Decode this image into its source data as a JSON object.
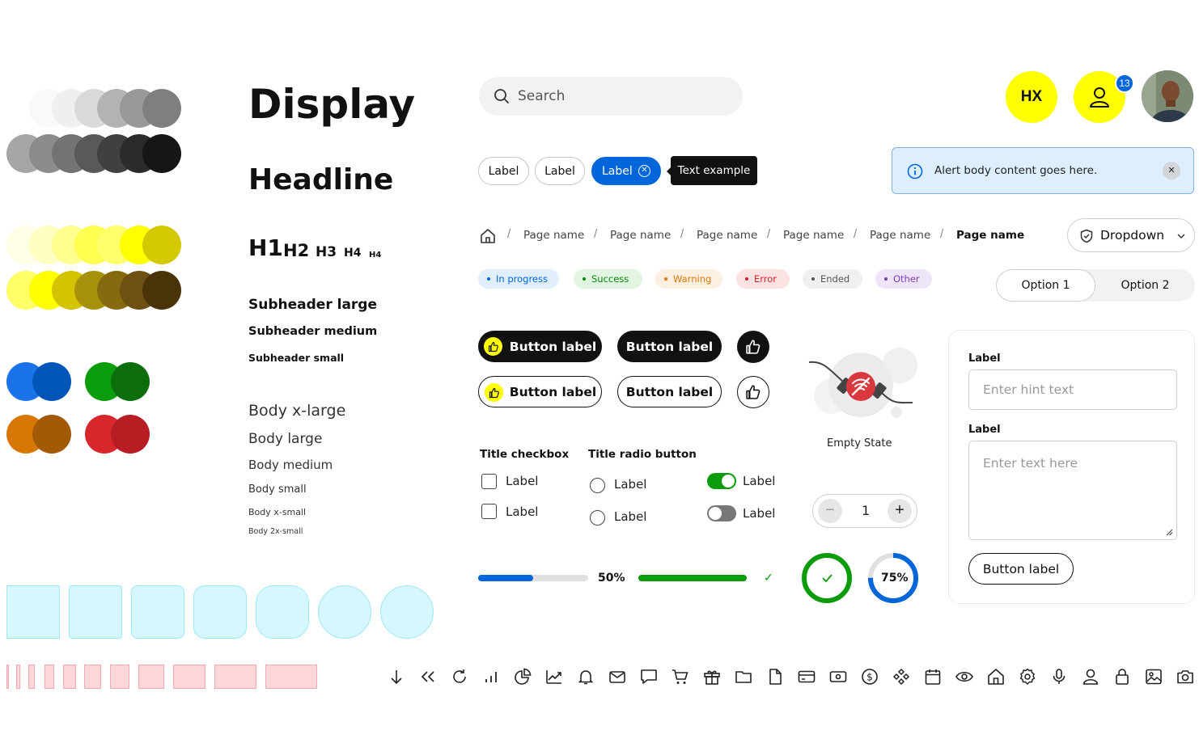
{
  "colors": {
    "accent_blue": "#0066d9",
    "accent_yellow": "#ffff00",
    "success_green": "#009900",
    "tile_fill": "#d6f7fd",
    "bar_fill": "#ffd6d9"
  },
  "typography": {
    "display": "Display",
    "headline": "Headline",
    "h1": "H1",
    "h2": "H2",
    "h3": "H3",
    "h4": "H4",
    "h5": "H4",
    "subheader_large": "Subheader large",
    "subheader_medium": "Subheader medium",
    "subheader_small": "Subheader small",
    "body_xlarge": "Body x-large",
    "body_large": "Body large",
    "body_medium": "Body medium",
    "body_small": "Body small",
    "body_xsmall": "Body x-small",
    "body_2xsmall": "Body 2x-small"
  },
  "search": {
    "placeholder": "Search",
    "icon": "search-icon"
  },
  "avatars": {
    "initials": "HX",
    "notification_count": "13",
    "user_icon": "user-icon"
  },
  "chips": {
    "chip1": "Label",
    "chip2": "Label",
    "chip_selected": "Label",
    "tooltip": "Text example"
  },
  "alert": {
    "body": "Alert body content goes here.",
    "icon": "info-icon"
  },
  "breadcrumb": {
    "home_icon": "home-icon",
    "items": [
      "Page name",
      "Page name",
      "Page name",
      "Page name",
      "Page name",
      "Page name"
    ]
  },
  "dropdown": {
    "label": "Dropdown",
    "icon": "shield-icon"
  },
  "status_tags": [
    {
      "label": "In progress",
      "color": "#0066d9"
    },
    {
      "label": "Success",
      "color": "#009900"
    },
    {
      "label": "Warning",
      "color": "#d97706"
    },
    {
      "label": "Error",
      "color": "#d0242b"
    },
    {
      "label": "Ended",
      "color": "#555555"
    },
    {
      "label": "Other",
      "color": "#7a3fb3"
    }
  ],
  "segmented": {
    "option1": "Option 1",
    "option2": "Option 2",
    "selected": "Option 1"
  },
  "buttons": {
    "primary_icon": "Button label",
    "primary": "Button label",
    "secondary_icon": "Button label",
    "secondary": "Button label",
    "icon_name": "thumbs-up-icon"
  },
  "empty_state": {
    "label": "Empty State",
    "icon": "no-wifi-icon"
  },
  "checkboxes": {
    "title": "Title checkbox",
    "items": [
      "Label",
      "Label"
    ]
  },
  "radios": {
    "title": "Title radio button",
    "items": [
      "Label",
      "Label"
    ]
  },
  "toggles": {
    "items": [
      {
        "label": "Label",
        "on": true
      },
      {
        "label": "Label",
        "on": false
      }
    ]
  },
  "stepper": {
    "value": "1"
  },
  "progress": {
    "bar1_value": 0.5,
    "bar1_label": "50%",
    "bar2_value": 1.0,
    "ring_complete": 1.0,
    "ring_partial_value": 0.75,
    "ring_partial_label": "75%"
  },
  "form": {
    "label1": "Label",
    "placeholder1": "Enter hint text",
    "label2": "Label",
    "placeholder2": "Enter text here",
    "button": "Button label"
  },
  "icon_row": [
    "arrow-down-icon",
    "chevrons-left-icon",
    "refresh-icon",
    "bar-chart-icon",
    "pie-chart-icon",
    "trending-up-icon",
    "bell-icon",
    "mail-icon",
    "chat-icon",
    "cart-icon",
    "gift-icon",
    "folder-icon",
    "file-icon",
    "credit-card-icon",
    "cash-icon",
    "dollar-icon",
    "apps-icon",
    "calendar-icon",
    "eye-icon",
    "home-icon",
    "settings-icon",
    "microphone-icon",
    "user-icon",
    "lock-icon",
    "image-icon",
    "camera-icon"
  ]
}
